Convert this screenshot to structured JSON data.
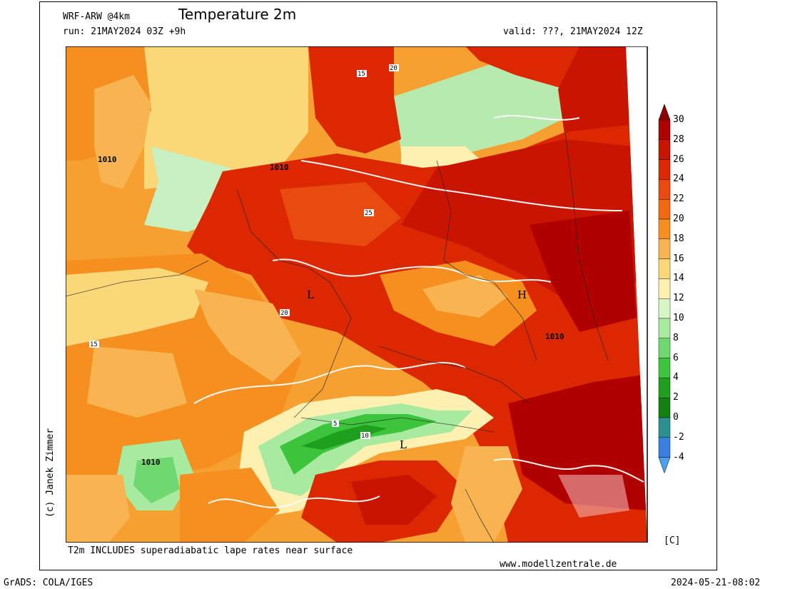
{
  "header": {
    "model": "WRF-ARW @4km",
    "title": "Temperature 2m",
    "run": "run: 21MAY2024 03Z +9h",
    "valid": "valid: ???, 21MAY2024 12Z"
  },
  "footer": {
    "note": "T2m INCLUDES superadiabatic lape rates near surface",
    "website": "www.modellzentrale.de",
    "grads": "GrADS: COLA/IGES",
    "timestamp": "2024-05-21-08:02",
    "copyright": "(c) Janek Zimmer",
    "unit": "[C]"
  },
  "colorbar": {
    "levels": [
      "30",
      "28",
      "26",
      "24",
      "22",
      "20",
      "18",
      "16",
      "14",
      "12",
      "10",
      "8",
      "6",
      "4",
      "2",
      "0",
      "-2",
      "-4"
    ],
    "colors": [
      "#8b0000",
      "#b00000",
      "#c81400",
      "#dc2800",
      "#e84a10",
      "#f06a10",
      "#f59020",
      "#f7b450",
      "#fad87a",
      "#fdf0b0",
      "#d8f5c8",
      "#a8eaa0",
      "#70d870",
      "#3cc43c",
      "#1ea01e",
      "#148014",
      "#2a9090",
      "#3a80e0",
      "#4aa0f0"
    ]
  },
  "map": {
    "pressure_labels": [
      "1010",
      "1010",
      "1010",
      "1010"
    ],
    "pressure_centers": [
      "L",
      "L",
      "H"
    ],
    "isotherm_labels": [
      "15",
      "20",
      "25",
      "20",
      "15",
      "10",
      "5"
    ]
  }
}
